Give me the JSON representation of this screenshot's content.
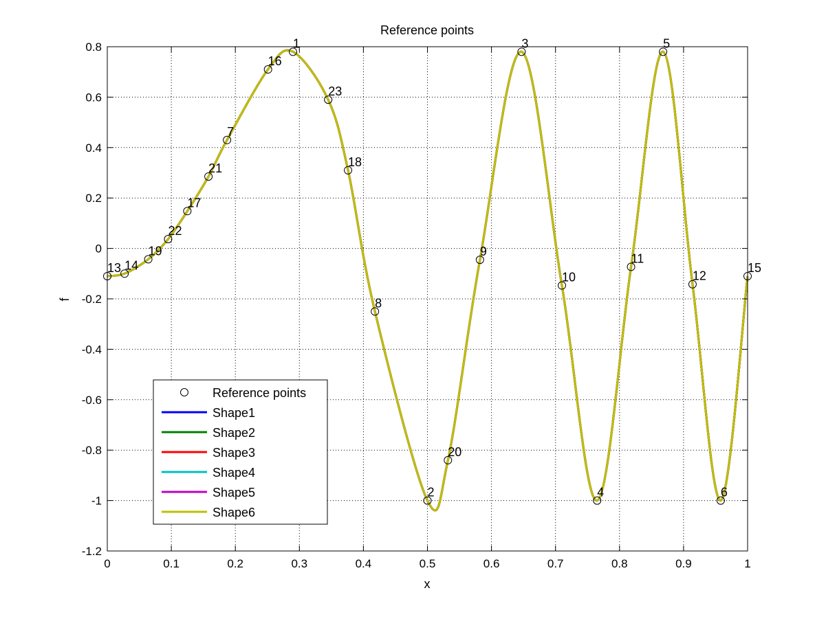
{
  "chart_data": {
    "type": "line",
    "title": "Reference points",
    "xlabel": "x",
    "ylabel": "f",
    "xlim": [
      0,
      1
    ],
    "ylim": [
      -1.2,
      0.8
    ],
    "xticks": [
      "0",
      "0.1",
      "0.2",
      "0.3",
      "0.4",
      "0.5",
      "0.6",
      "0.7",
      "0.8",
      "0.9",
      "1"
    ],
    "yticks": [
      "-1.2",
      "-1",
      "-0.8",
      "-0.6",
      "-0.4",
      "-0.2",
      "0",
      "0.2",
      "0.4",
      "0.6",
      "0.8"
    ],
    "grid": true,
    "legend_position": "bottom-left",
    "reference_points": {
      "name": "Reference points",
      "points": [
        {
          "label": "1",
          "x": 0.29,
          "y": 0.78
        },
        {
          "label": "2",
          "x": 0.5,
          "y": -1.0
        },
        {
          "label": "3",
          "x": 0.647,
          "y": 0.78
        },
        {
          "label": "4",
          "x": 0.765,
          "y": -1.0
        },
        {
          "label": "5",
          "x": 0.868,
          "y": 0.78
        },
        {
          "label": "6",
          "x": 0.958,
          "y": -1.0
        },
        {
          "label": "7",
          "x": 0.187,
          "y": 0.43
        },
        {
          "label": "8",
          "x": 0.418,
          "y": -0.25
        },
        {
          "label": "9",
          "x": 0.582,
          "y": -0.045
        },
        {
          "label": "10",
          "x": 0.71,
          "y": -0.147
        },
        {
          "label": "11",
          "x": 0.818,
          "y": -0.073
        },
        {
          "label": "12",
          "x": 0.914,
          "y": -0.142
        },
        {
          "label": "13",
          "x": 0.0,
          "y": -0.11
        },
        {
          "label": "14",
          "x": 0.027,
          "y": -0.1
        },
        {
          "label": "15",
          "x": 1.0,
          "y": -0.11
        },
        {
          "label": "16",
          "x": 0.251,
          "y": 0.71
        },
        {
          "label": "17",
          "x": 0.125,
          "y": 0.148
        },
        {
          "label": "18",
          "x": 0.376,
          "y": 0.31
        },
        {
          "label": "19",
          "x": 0.064,
          "y": -0.043
        },
        {
          "label": "20",
          "x": 0.532,
          "y": -0.84
        },
        {
          "label": "21",
          "x": 0.158,
          "y": 0.285
        },
        {
          "label": "22",
          "x": 0.095,
          "y": 0.037
        },
        {
          "label": "23",
          "x": 0.345,
          "y": 0.59
        }
      ]
    },
    "series": [
      {
        "name": "Shape1",
        "color": "#0000ff"
      },
      {
        "name": "Shape2",
        "color": "#008000"
      },
      {
        "name": "Shape3",
        "color": "#ff0000"
      },
      {
        "name": "Shape4",
        "color": "#00bfbf"
      },
      {
        "name": "Shape5",
        "color": "#bf00bf"
      },
      {
        "name": "Shape6",
        "color": "#bfbf00"
      }
    ],
    "curve": {
      "x": [
        0.0,
        0.027,
        0.064,
        0.095,
        0.125,
        0.158,
        0.187,
        0.251,
        0.29,
        0.345,
        0.376,
        0.418,
        0.5,
        0.532,
        0.582,
        0.647,
        0.71,
        0.765,
        0.818,
        0.868,
        0.914,
        0.958,
        1.0
      ],
      "y": [
        -0.11,
        -0.1,
        -0.043,
        0.037,
        0.148,
        0.285,
        0.43,
        0.71,
        0.78,
        0.59,
        0.31,
        -0.25,
        -1.0,
        -0.84,
        -0.045,
        0.78,
        -0.147,
        -1.0,
        -0.073,
        0.78,
        -0.142,
        -1.0,
        -0.11
      ]
    }
  }
}
